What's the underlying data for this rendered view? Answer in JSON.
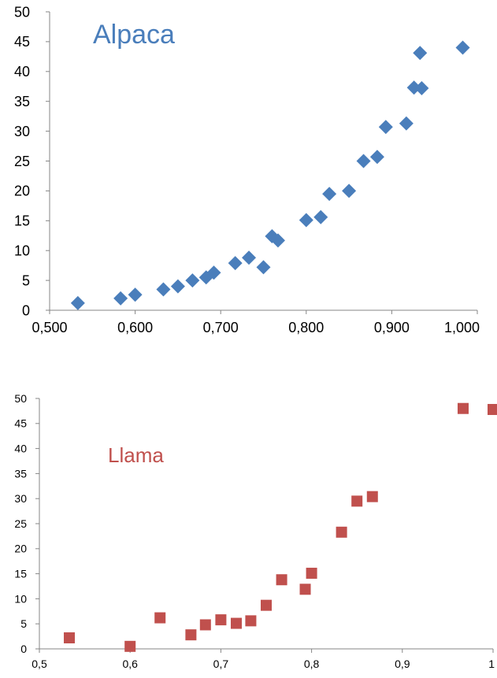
{
  "chart_data": [
    {
      "type": "scatter",
      "annotation": "Alpaca",
      "color": "#4A7EBB",
      "marker": "diamond",
      "xlim": [
        0.5,
        1.0
      ],
      "ylim": [
        0,
        50
      ],
      "xticks": [
        "0,500",
        "0,600",
        "0,700",
        "0,800",
        "0,900",
        "1,000"
      ],
      "yticks": [
        "0",
        "5",
        "10",
        "15",
        "20",
        "25",
        "30",
        "35",
        "40",
        "45",
        "50"
      ],
      "grid": false,
      "points": [
        {
          "x": 0.533,
          "y": 1.2
        },
        {
          "x": 0.583,
          "y": 2.0
        },
        {
          "x": 0.6,
          "y": 2.6
        },
        {
          "x": 0.633,
          "y": 3.5
        },
        {
          "x": 0.65,
          "y": 4.0
        },
        {
          "x": 0.667,
          "y": 5.0
        },
        {
          "x": 0.683,
          "y": 5.5
        },
        {
          "x": 0.692,
          "y": 6.3
        },
        {
          "x": 0.717,
          "y": 7.9
        },
        {
          "x": 0.733,
          "y": 8.8
        },
        {
          "x": 0.75,
          "y": 7.2
        },
        {
          "x": 0.76,
          "y": 12.4
        },
        {
          "x": 0.767,
          "y": 11.7
        },
        {
          "x": 0.8,
          "y": 15.1
        },
        {
          "x": 0.817,
          "y": 15.6
        },
        {
          "x": 0.827,
          "y": 19.5
        },
        {
          "x": 0.85,
          "y": 20.0
        },
        {
          "x": 0.867,
          "y": 25.0
        },
        {
          "x": 0.883,
          "y": 25.7
        },
        {
          "x": 0.893,
          "y": 30.7
        },
        {
          "x": 0.917,
          "y": 31.3
        },
        {
          "x": 0.926,
          "y": 37.3
        },
        {
          "x": 0.933,
          "y": 43.1
        },
        {
          "x": 0.935,
          "y": 37.2
        },
        {
          "x": 0.983,
          "y": 44.0
        }
      ]
    },
    {
      "type": "scatter",
      "annotation": "Llama",
      "color": "#C0504D",
      "marker": "square",
      "xlim": [
        0.5,
        1.0
      ],
      "ylim": [
        0,
        50
      ],
      "xticks": [
        "0,5",
        "0,6",
        "0,7",
        "0,8",
        "0,9",
        "1"
      ],
      "yticks": [
        "0",
        "5",
        "10",
        "15",
        "20",
        "25",
        "30",
        "35",
        "40",
        "45",
        "50"
      ],
      "grid": false,
      "points": [
        {
          "x": 0.533,
          "y": 2.2
        },
        {
          "x": 0.6,
          "y": 0.5
        },
        {
          "x": 0.633,
          "y": 6.2
        },
        {
          "x": 0.667,
          "y": 2.8
        },
        {
          "x": 0.683,
          "y": 4.8
        },
        {
          "x": 0.7,
          "y": 5.8
        },
        {
          "x": 0.717,
          "y": 5.1
        },
        {
          "x": 0.733,
          "y": 5.6
        },
        {
          "x": 0.75,
          "y": 8.7
        },
        {
          "x": 0.767,
          "y": 13.8
        },
        {
          "x": 0.793,
          "y": 11.9
        },
        {
          "x": 0.8,
          "y": 15.1
        },
        {
          "x": 0.833,
          "y": 23.3
        },
        {
          "x": 0.85,
          "y": 29.5
        },
        {
          "x": 0.867,
          "y": 30.4
        },
        {
          "x": 0.967,
          "y": 48.0
        },
        {
          "x": 1.0,
          "y": 47.8
        }
      ]
    }
  ]
}
